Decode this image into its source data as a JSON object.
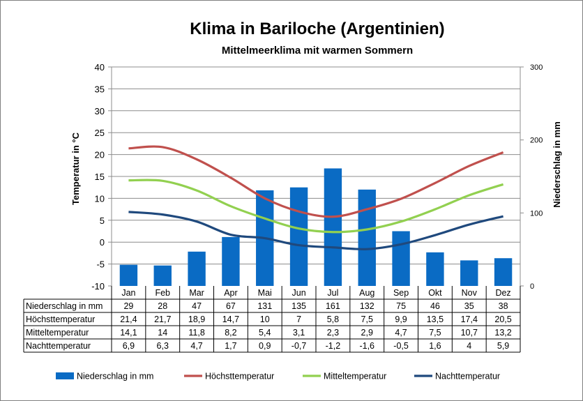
{
  "chart_data": {
    "type": "bar",
    "title": "Klima in Bariloche (Argentinien)",
    "subtitle": "Mittelmeerklima mit warmen Sommern",
    "categories": [
      "Jan",
      "Feb",
      "Mar",
      "Apr",
      "Mai",
      "Jun",
      "Jul",
      "Aug",
      "Sep",
      "Okt",
      "Nov",
      "Dez"
    ],
    "ylabel_left": "Temperatur in °C",
    "ylabel_right": "Niederschlag in mm",
    "ylim_left": [
      -10,
      40
    ],
    "ylim_right": [
      0,
      300
    ],
    "yticks_left": [
      "40",
      "35",
      "30",
      "25",
      "20",
      "15",
      "10",
      "5",
      "0",
      "-5",
      "-10"
    ],
    "yticks_right": [
      "300",
      "200",
      "100",
      "0"
    ],
    "grid": true,
    "legend_position": "bottom",
    "series": [
      {
        "name": "Niederschlag in mm",
        "kind": "bar",
        "axis": "right",
        "color": "#0a6bc4",
        "values": [
          29,
          28,
          47,
          67,
          131,
          135,
          161,
          132,
          75,
          46,
          35,
          38
        ],
        "labels": [
          "29",
          "28",
          "47",
          "67",
          "131",
          "135",
          "161",
          "132",
          "75",
          "46",
          "35",
          "38"
        ]
      },
      {
        "name": "Höchsttemperatur",
        "kind": "line",
        "axis": "left",
        "color": "#c0504d",
        "values": [
          21.4,
          21.7,
          18.9,
          14.7,
          10,
          7,
          5.8,
          7.5,
          9.9,
          13.5,
          17.4,
          20.5
        ],
        "labels": [
          "21,4",
          "21,7",
          "18,9",
          "14,7",
          "10",
          "7",
          "5,8",
          "7,5",
          "9,9",
          "13,5",
          "17,4",
          "20,5"
        ]
      },
      {
        "name": "Mitteltemperatur",
        "kind": "line",
        "axis": "left",
        "color": "#92d050",
        "values": [
          14.1,
          14,
          11.8,
          8.2,
          5.4,
          3.1,
          2.3,
          2.9,
          4.7,
          7.5,
          10.7,
          13.2
        ],
        "labels": [
          "14,1",
          "14",
          "11,8",
          "8,2",
          "5,4",
          "3,1",
          "2,3",
          "2,9",
          "4,7",
          "7,5",
          "10,7",
          "13,2"
        ]
      },
      {
        "name": "Nachttemperatur",
        "kind": "line",
        "axis": "left",
        "color": "#1f497d",
        "values": [
          6.9,
          6.3,
          4.7,
          1.7,
          0.9,
          -0.7,
          -1.2,
          -1.6,
          -0.5,
          1.6,
          4,
          5.9
        ],
        "labels": [
          "6,9",
          "6,3",
          "4,7",
          "1,7",
          "0,9",
          "-0,7",
          "-1,2",
          "-1,6",
          "-0,5",
          "1,6",
          "4",
          "5,9"
        ]
      }
    ]
  }
}
